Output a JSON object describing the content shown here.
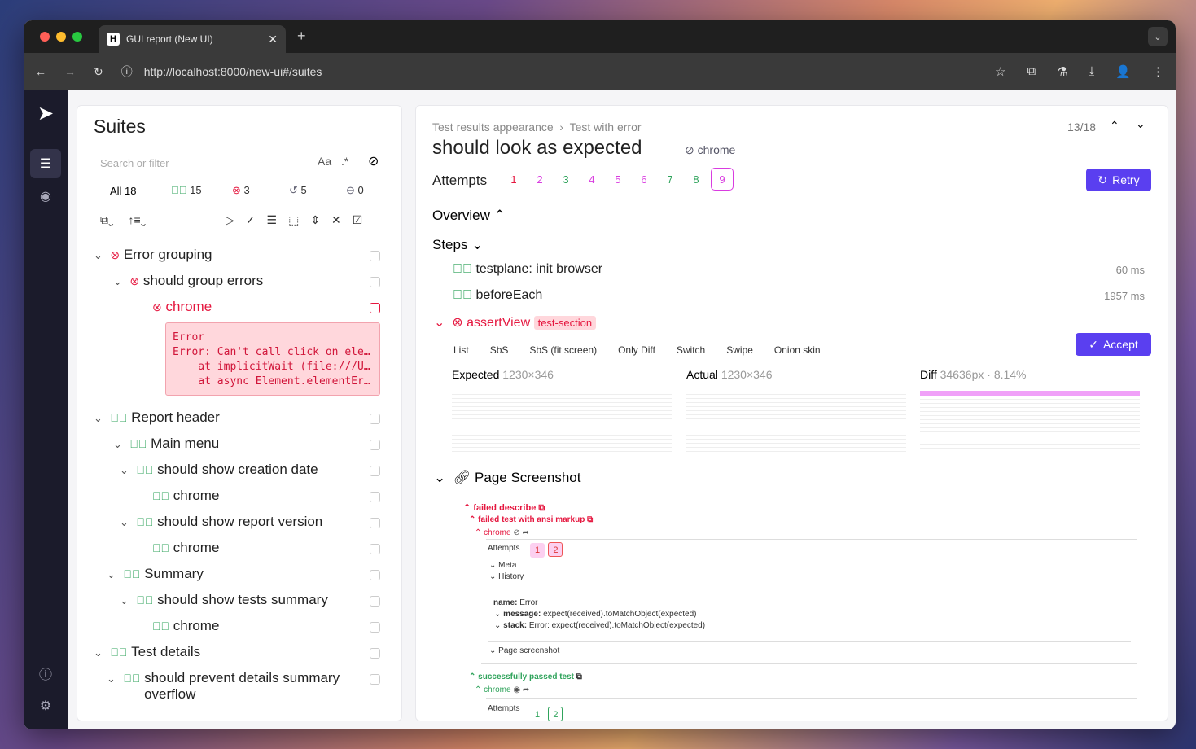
{
  "browser": {
    "tab_title": "GUI report (New UI)",
    "url": "http://localhost:8000/new-ui#/suites"
  },
  "sidebar": {
    "title": "Suites",
    "search_placeholder": "Search or filter",
    "match_case": "Aa",
    "regex": ".*",
    "filters": {
      "all": "All 18",
      "passed": "15",
      "failed": "3",
      "retried": "5",
      "skipped": "0"
    },
    "tree": [
      {
        "label": "Error grouping",
        "status": "failed"
      },
      {
        "label": "should group errors",
        "status": "failed"
      },
      {
        "label": "chrome",
        "status": "failed"
      },
      {
        "label": "Report header",
        "status": "passed"
      },
      {
        "label": "Main menu",
        "status": "passed"
      },
      {
        "label": "should show creation date",
        "status": "passed"
      },
      {
        "label": "chrome",
        "status": "passed"
      },
      {
        "label": "should show report version",
        "status": "passed"
      },
      {
        "label": "chrome",
        "status": "passed"
      },
      {
        "label": "Summary",
        "status": "passed"
      },
      {
        "label": "should show tests summary",
        "status": "passed"
      },
      {
        "label": "chrome",
        "status": "passed"
      },
      {
        "label": "Test details",
        "status": "passed"
      },
      {
        "label": "should prevent details summary overflow",
        "status": "passed"
      }
    ],
    "error_text": "Error\nError: Can't call click on ele…\n    at implicitWait (file:///U…\n    at async Element.elementEr…"
  },
  "main": {
    "breadcrumb": [
      "Test results appearance",
      "Test with error"
    ],
    "title": "should look as expected",
    "browser": "chrome",
    "counter": "13/18",
    "attempts_label": "Attempts",
    "attempts": [
      {
        "n": "1",
        "s": "failed"
      },
      {
        "n": "2",
        "s": "error"
      },
      {
        "n": "3",
        "s": "passed"
      },
      {
        "n": "4",
        "s": "error"
      },
      {
        "n": "5",
        "s": "error"
      },
      {
        "n": "6",
        "s": "error"
      },
      {
        "n": "7",
        "s": "passed"
      },
      {
        "n": "8",
        "s": "passed"
      },
      {
        "n": "9",
        "s": "error"
      }
    ],
    "retry": "Retry",
    "overview": "Overview",
    "steps_label": "Steps",
    "steps": [
      {
        "label": "testplane: init browser",
        "time": "60 ms"
      },
      {
        "label": "beforeEach",
        "time": "1957 ms"
      }
    ],
    "assert": {
      "label": "assertView",
      "tag": "test-section"
    },
    "modes": [
      "List",
      "SbS",
      "SbS (fit screen)",
      "Only Diff",
      "Switch",
      "Swipe",
      "Onion skin"
    ],
    "accept": "Accept",
    "expected": {
      "label": "Expected",
      "size": "1230×346"
    },
    "actual": {
      "label": "Actual",
      "size": "1230×346"
    },
    "diff": {
      "label": "Diff",
      "size": "34636px",
      "pct": "8.14%"
    },
    "page_screenshot": "Page Screenshot",
    "shot": {
      "failed_describe": "failed describe",
      "failed_test": "failed test with ansi markup",
      "chrome": "chrome",
      "attempts": "Attempts",
      "a1": "1",
      "a2": "2",
      "meta": "Meta",
      "history": "History",
      "name_k": "name:",
      "name_v": "Error",
      "msg_k": "message:",
      "msg_v": "expect(received).toMatchObject(expected)",
      "stack_k": "stack:",
      "stack_v": "Error: expect(received).toMatchObject(expected)",
      "page_shot": "Page screenshot",
      "passed_test": "successfully passed test"
    }
  },
  "colors": {
    "accent": "#5a3ff0",
    "passed": "#2fa35b",
    "failed": "#e5173f",
    "error": "#d93ce0"
  }
}
